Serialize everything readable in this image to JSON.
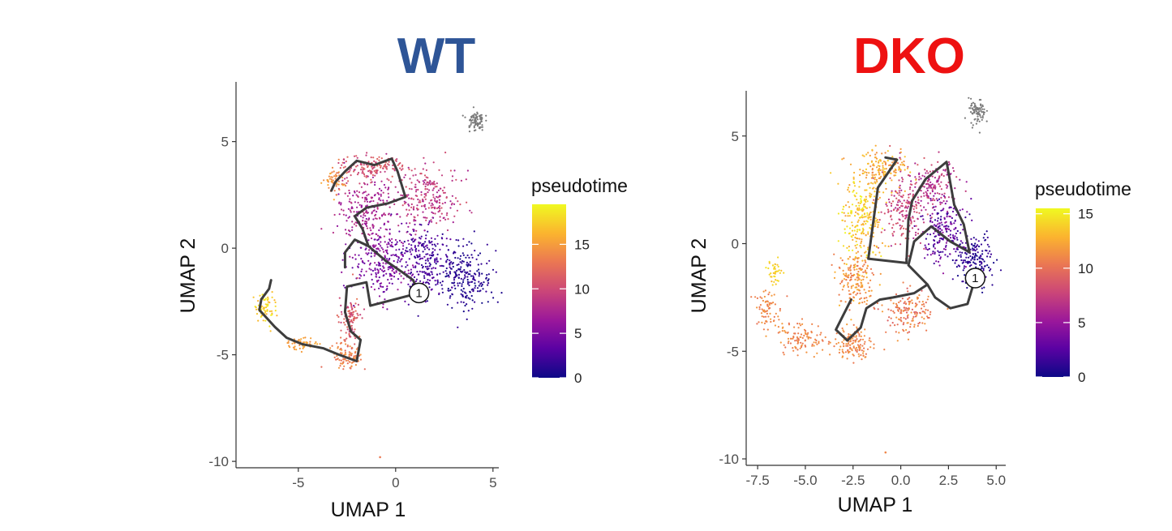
{
  "chart_data": [
    {
      "type": "scatter",
      "title": "WT",
      "title_color": "#2E5597",
      "xlabel": "UMAP 1",
      "ylabel": "UMAP 2",
      "xlim": [
        -8.2,
        5.3
      ],
      "ylim": [
        -10.3,
        7.8
      ],
      "xticks": [
        -5,
        0,
        5
      ],
      "xtick_labels": [
        "-5",
        "0",
        "5"
      ],
      "yticks": [
        -10,
        -5,
        0,
        5
      ],
      "ytick_labels": [
        "-10",
        "-5",
        "0",
        "5"
      ],
      "grid": false,
      "legend": {
        "title": "pseudotime",
        "placement": "right",
        "range": [
          0,
          19.5
        ],
        "ticks": [
          0,
          5,
          10,
          15
        ],
        "tick_labels": [
          "0",
          "5",
          "10",
          "15"
        ]
      },
      "colormap": [
        "#0D0887",
        "#5B02A3",
        "#9A179B",
        "#CB4678",
        "#EB7852",
        "#FBB32F",
        "#F0F921"
      ],
      "trajectory": {
        "root_label": "1",
        "root": [
          1.2,
          -2.1
        ],
        "segments": [
          [
            [
              1.2,
              -2.1
            ],
            [
              -1.3,
              -2.7
            ],
            [
              -1.5,
              -1.6
            ],
            [
              -2.5,
              -1.8
            ],
            [
              -2.6,
              -3.0
            ],
            [
              -2.3,
              -3.9
            ],
            [
              -1.8,
              -4.3
            ],
            [
              -2.0,
              -5.3
            ],
            [
              -2.9,
              -5.0
            ],
            [
              -3.7,
              -4.7
            ],
            [
              -4.8,
              -4.5
            ],
            [
              -5.6,
              -4.2
            ],
            [
              -6.2,
              -3.7
            ],
            [
              -7.0,
              -2.9
            ],
            [
              -6.9,
              -2.4
            ],
            [
              -6.5,
              -1.9
            ],
            [
              -6.4,
              -1.5
            ]
          ],
          [
            [
              1.2,
              -2.1
            ],
            [
              0.9,
              -1.5
            ],
            [
              0.3,
              -1.1
            ],
            [
              -0.5,
              -0.6
            ],
            [
              -1.4,
              0.1
            ],
            [
              -2.1,
              0.4
            ],
            [
              -2.6,
              -0.2
            ],
            [
              -2.6,
              -0.9
            ]
          ],
          [
            [
              -1.4,
              0.1
            ],
            [
              -1.7,
              0.9
            ],
            [
              -2.1,
              1.5
            ],
            [
              -1.5,
              1.9
            ],
            [
              -0.4,
              2.1
            ],
            [
              0.5,
              2.4
            ],
            [
              0.1,
              3.6
            ],
            [
              -0.2,
              4.2
            ],
            [
              -1.1,
              3.9
            ],
            [
              -2.0,
              4.1
            ],
            [
              -2.6,
              3.6
            ],
            [
              -3.1,
              3.1
            ],
            [
              -3.3,
              2.7
            ]
          ]
        ]
      },
      "cell_clusters": [
        {
          "center": [
            3.6,
            -1.4
          ],
          "spread": [
            1.2,
            1.2
          ],
          "pseudotime_range": [
            0,
            2
          ],
          "count": 220
        },
        {
          "center": [
            1.6,
            -0.5
          ],
          "spread": [
            1.3,
            1.5
          ],
          "pseudotime_range": [
            1,
            4
          ],
          "count": 230
        },
        {
          "center": [
            -0.6,
            -0.6
          ],
          "spread": [
            1.5,
            1.6
          ],
          "pseudotime_range": [
            3,
            7
          ],
          "count": 260
        },
        {
          "center": [
            -1.5,
            1.8
          ],
          "spread": [
            1.4,
            1.4
          ],
          "pseudotime_range": [
            6,
            9
          ],
          "count": 230
        },
        {
          "center": [
            1.8,
            2.3
          ],
          "spread": [
            1.4,
            1.4
          ],
          "pseudotime_range": [
            7,
            11
          ],
          "count": 220
        },
        {
          "center": [
            -1.2,
            3.8
          ],
          "spread": [
            1.5,
            0.5
          ],
          "pseudotime_range": [
            9,
            12
          ],
          "count": 140
        },
        {
          "center": [
            -3.2,
            3.2
          ],
          "spread": [
            0.5,
            0.6
          ],
          "pseudotime_range": [
            13,
            16
          ],
          "count": 55
        },
        {
          "center": [
            -2.3,
            -3.4
          ],
          "spread": [
            0.5,
            1.1
          ],
          "pseudotime_range": [
            9,
            13
          ],
          "count": 110
        },
        {
          "center": [
            -2.5,
            -5.1
          ],
          "spread": [
            0.7,
            0.5
          ],
          "pseudotime_range": [
            12,
            15
          ],
          "count": 90
        },
        {
          "center": [
            -4.9,
            -4.5
          ],
          "spread": [
            0.9,
            0.3
          ],
          "pseudotime_range": [
            14,
            16
          ],
          "count": 50
        },
        {
          "center": [
            -6.7,
            -2.7
          ],
          "spread": [
            0.45,
            0.7
          ],
          "pseudotime_range": [
            16,
            19.5
          ],
          "count": 70
        }
      ],
      "grey_cluster": {
        "center": [
          4.1,
          6.0
        ],
        "spread": [
          0.4,
          0.45
        ],
        "count": 80
      },
      "outliers": [
        [
          -0.8,
          -9.8,
          13
        ]
      ]
    },
    {
      "type": "scatter",
      "title": "DKO",
      "title_color": "#EE1111",
      "xlabel": "UMAP 1",
      "ylabel": "UMAP 2",
      "xlim": [
        -8.1,
        5.5
      ],
      "ylim": [
        -10.3,
        7.1
      ],
      "xticks": [
        -7.5,
        -5.0,
        -2.5,
        0.0,
        2.5,
        5.0
      ],
      "xtick_labels": [
        "-7.5",
        "-5.0",
        "-2.5",
        "0.0",
        "2.5",
        "5.0"
      ],
      "yticks": [
        -10,
        -5,
        0,
        5
      ],
      "ytick_labels": [
        "-10",
        "-5",
        "0",
        "5"
      ],
      "grid": false,
      "legend": {
        "title": "pseudotime",
        "placement": "right",
        "range": [
          0,
          15.5
        ],
        "ticks": [
          0,
          5,
          10,
          15
        ],
        "tick_labels": [
          "0",
          "5",
          "10",
          "15"
        ]
      },
      "colormap": [
        "#0D0887",
        "#5B02A3",
        "#9A179B",
        "#CB4678",
        "#EB7852",
        "#FBB32F",
        "#F0F921"
      ],
      "trajectory": {
        "root_label": "1",
        "root": [
          3.9,
          -1.6
        ],
        "segments": [
          [
            [
              3.9,
              -1.6
            ],
            [
              3.5,
              -2.8
            ],
            [
              2.6,
              -3.0
            ],
            [
              1.8,
              -2.5
            ],
            [
              1.4,
              -1.9
            ],
            [
              0.7,
              -2.3
            ],
            [
              -0.4,
              -2.5
            ],
            [
              -1.1,
              -2.6
            ],
            [
              -1.8,
              -3.0
            ],
            [
              -2.1,
              -3.9
            ],
            [
              -2.8,
              -4.5
            ],
            [
              -3.4,
              -4.0
            ],
            [
              -3.0,
              -3.3
            ],
            [
              -2.6,
              -2.6
            ]
          ],
          [
            [
              1.4,
              -1.9
            ],
            [
              0.4,
              -1.0
            ],
            [
              0.7,
              0.1
            ],
            [
              1.6,
              0.8
            ],
            [
              2.6,
              0.1
            ],
            [
              3.6,
              -0.4
            ],
            [
              3.3,
              0.9
            ],
            [
              2.8,
              1.8
            ],
            [
              2.4,
              3.8
            ],
            [
              1.3,
              3.0
            ],
            [
              0.6,
              2.0
            ]
          ],
          [
            [
              0.6,
              2.0
            ],
            [
              0.4,
              1.1
            ],
            [
              0.3,
              -0.9
            ],
            [
              -1.7,
              -0.7
            ],
            [
              -1.2,
              2.6
            ],
            [
              -0.2,
              3.9
            ],
            [
              -0.8,
              4.0
            ]
          ]
        ]
      },
      "cell_clusters": [
        {
          "center": [
            3.8,
            -0.8
          ],
          "spread": [
            0.9,
            1.1
          ],
          "pseudotime_range": [
            0,
            2
          ],
          "count": 180
        },
        {
          "center": [
            2.2,
            0.6
          ],
          "spread": [
            1.1,
            1.4
          ],
          "pseudotime_range": [
            1,
            5
          ],
          "count": 200
        },
        {
          "center": [
            1.8,
            2.8
          ],
          "spread": [
            1.1,
            1.0
          ],
          "pseudotime_range": [
            5,
            8
          ],
          "count": 140
        },
        {
          "center": [
            0.2,
            1.6
          ],
          "spread": [
            1.1,
            1.6
          ],
          "pseudotime_range": [
            6,
            9
          ],
          "count": 200
        },
        {
          "center": [
            -1.0,
            3.4
          ],
          "spread": [
            1.2,
            0.8
          ],
          "pseudotime_range": [
            11,
            14
          ],
          "count": 150
        },
        {
          "center": [
            -2.0,
            1.2
          ],
          "spread": [
            0.9,
            1.8
          ],
          "pseudotime_range": [
            12,
            15.5
          ],
          "count": 240
        },
        {
          "center": [
            -2.3,
            -1.6
          ],
          "spread": [
            0.9,
            1.3
          ],
          "pseudotime_range": [
            10,
            13
          ],
          "count": 180
        },
        {
          "center": [
            0.3,
            -3.2
          ],
          "spread": [
            1.1,
            0.9
          ],
          "pseudotime_range": [
            9,
            12
          ],
          "count": 150
        },
        {
          "center": [
            -2.5,
            -4.7
          ],
          "spread": [
            0.9,
            0.7
          ],
          "pseudotime_range": [
            10,
            12
          ],
          "count": 130
        },
        {
          "center": [
            -5.2,
            -4.4
          ],
          "spread": [
            1.1,
            0.7
          ],
          "pseudotime_range": [
            10,
            12
          ],
          "count": 110
        },
        {
          "center": [
            -7.0,
            -3.0
          ],
          "spread": [
            0.5,
            0.8
          ],
          "pseudotime_range": [
            10,
            12
          ],
          "count": 70
        },
        {
          "center": [
            -6.6,
            -1.3
          ],
          "spread": [
            0.35,
            0.6
          ],
          "pseudotime_range": [
            13,
            15
          ],
          "count": 40
        }
      ],
      "grey_cluster": {
        "center": [
          4.0,
          6.1
        ],
        "spread": [
          0.4,
          0.55
        ],
        "count": 80
      },
      "outliers": [
        [
          -0.8,
          -9.7,
          11
        ]
      ]
    }
  ]
}
